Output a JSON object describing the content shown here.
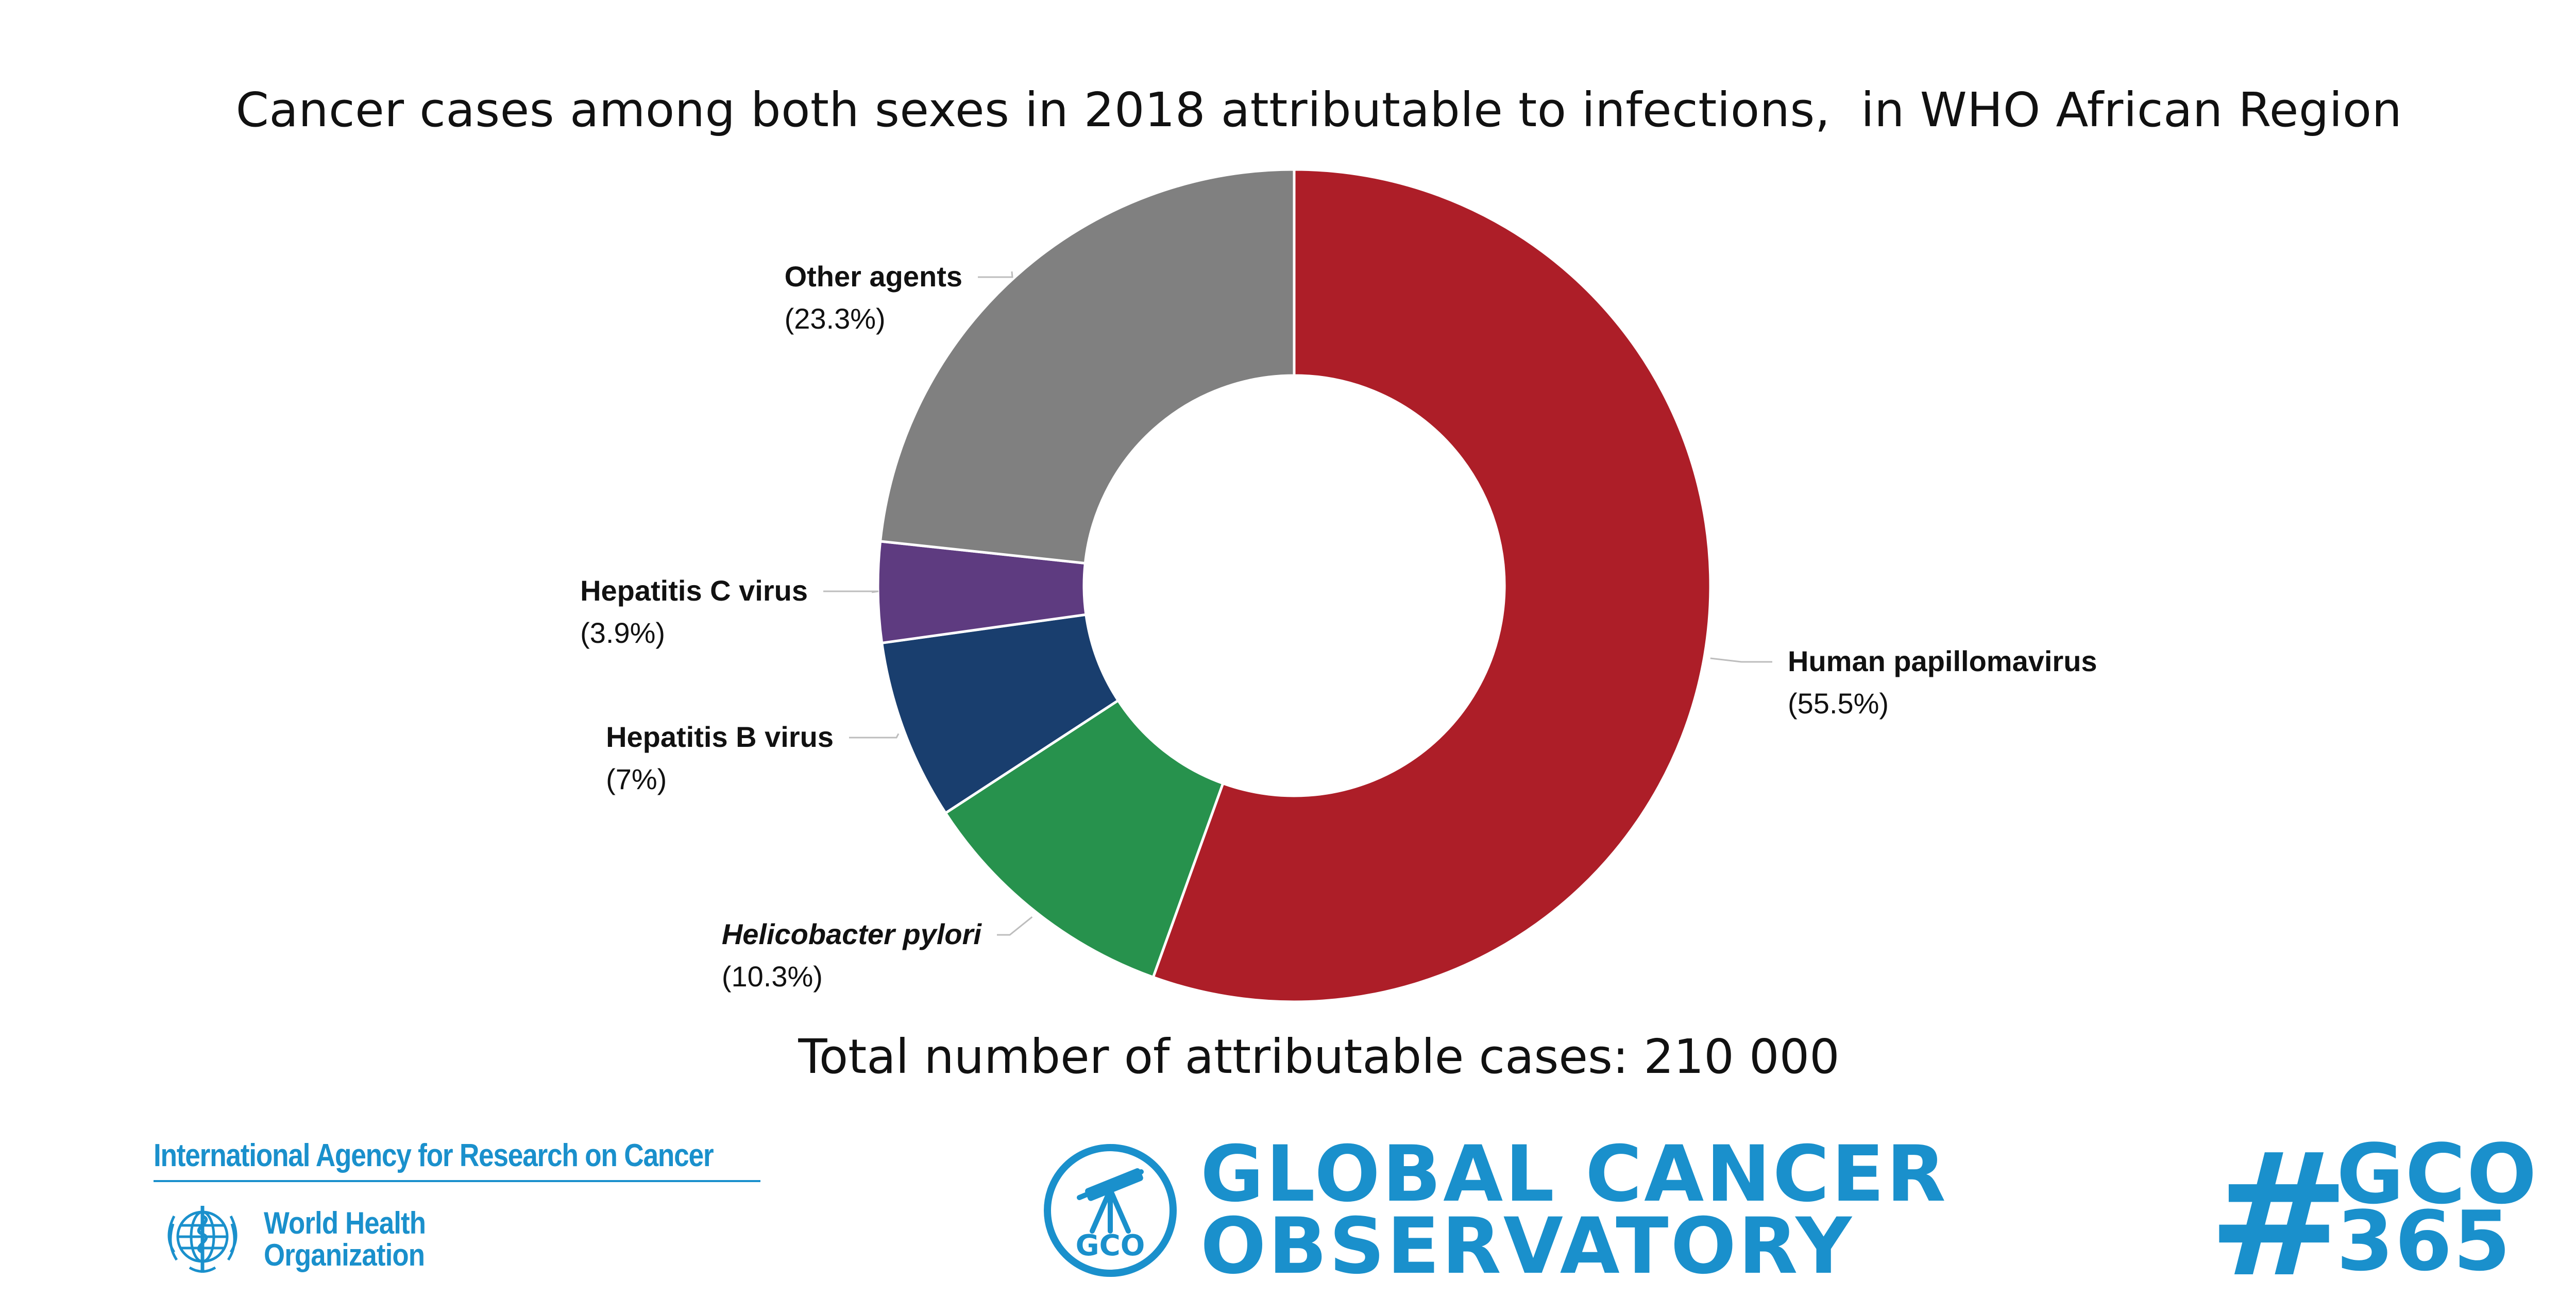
{
  "chart_data": {
    "type": "pie",
    "variant": "donut",
    "title": "Cancer cases among both sexes in 2018 attributable to infections,  in WHO African Region",
    "total_label": "Total number of attributable cases: 210 000",
    "slices": [
      {
        "label": "Human papillomavirus",
        "pct_label": "(55.5%)",
        "value": 55.5,
        "color": "#ad1e28",
        "italic": false
      },
      {
        "label": "Helicobacter pylori",
        "pct_label": "(10.3%)",
        "value": 10.3,
        "color": "#27924d",
        "italic": true
      },
      {
        "label": "Hepatitis B virus",
        "pct_label": "(7%)",
        "value": 7.0,
        "color": "#193e6e",
        "italic": false
      },
      {
        "label": "Hepatitis C virus",
        "pct_label": "(3.9%)",
        "value": 3.9,
        "color": "#5e3b80",
        "italic": false
      },
      {
        "label": "Other agents",
        "pct_label": "(23.3%)",
        "value": 23.3,
        "color": "#808080",
        "italic": false
      }
    ],
    "start_angle": "12 o'clock",
    "direction": "clockwise",
    "legend": "none"
  },
  "footer": {
    "iarc_name": "International Agency for Research on Cancer",
    "who_line1": "World Health",
    "who_line2": "Organization",
    "gco_line1": "GLOBAL CANCER",
    "gco_line2": "OBSERVATORY",
    "gco_badge": "GCO",
    "hashtag_symbol": "#",
    "hashtag_line1": "GCO",
    "hashtag_line2": "365",
    "brand_color": "#1a90cc"
  }
}
